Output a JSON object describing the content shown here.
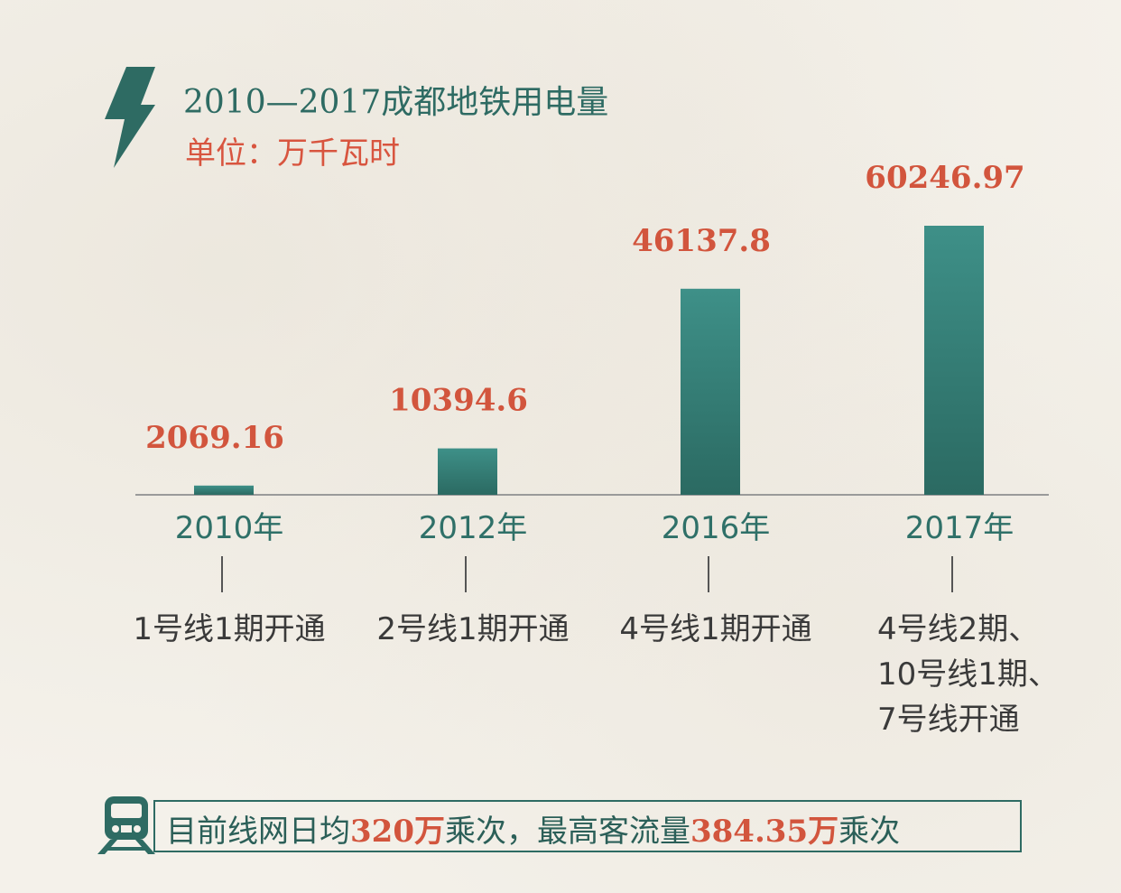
{
  "header": {
    "title": "2010—2017成都地铁用电量",
    "unit": "单位：万千瓦时",
    "icon": "lightning-bolt-icon"
  },
  "chart_data": {
    "type": "bar",
    "categories": [
      "2010年",
      "2012年",
      "2016年",
      "2017年"
    ],
    "values": [
      2069.16,
      10394.6,
      46137.8,
      60246.97
    ],
    "value_labels": [
      "2069.16",
      "10394.6",
      "46137.8",
      "60246.97"
    ],
    "notes": [
      [
        "1号线1期开通"
      ],
      [
        "2号线1期开通"
      ],
      [
        "4号线1期开通"
      ],
      [
        "4号线2期、",
        "10号线1期、",
        "7号线开通"
      ]
    ],
    "title": "2010—2017成都地铁用电量",
    "ylabel": "单位：万千瓦时",
    "ylim": [
      0,
      60246.97
    ],
    "grid": false,
    "bar_color": "#2e7b72",
    "label_color": "#d2553d"
  },
  "footer": {
    "icon": "train-icon",
    "parts": [
      {
        "text": "目前线网日均",
        "hl": false
      },
      {
        "text": "320万",
        "hl": true
      },
      {
        "text": "乘次，最高客流量",
        "hl": false
      },
      {
        "text": "384.35万",
        "hl": true
      },
      {
        "text": "乘次",
        "hl": false
      }
    ]
  }
}
